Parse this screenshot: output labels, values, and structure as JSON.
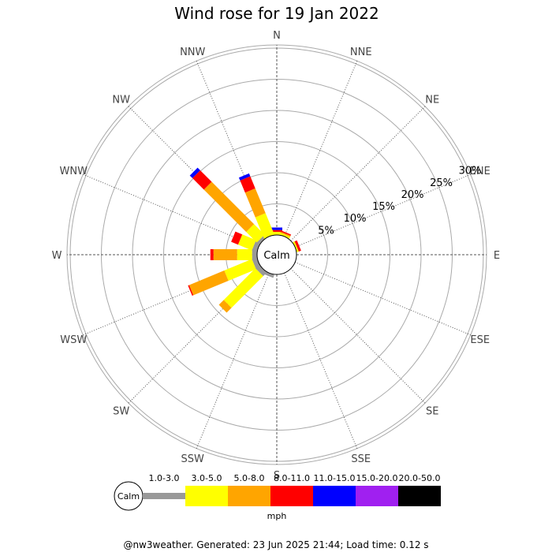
{
  "title": "Wind rose for 19 Jan 2022",
  "calm_label": "Calm",
  "footer": "@nw3weather. Generated: 23 Jun 2025 21:44; Load time: 0.12 s",
  "legend": {
    "unit": "mph",
    "calm_label": "Calm",
    "bins": [
      {
        "label": "1.0-3.0",
        "color": "#999999"
      },
      {
        "label": "3.0-5.0",
        "color": "#ffff00"
      },
      {
        "label": "5.0-8.0",
        "color": "#ffa500"
      },
      {
        "label": "8.0-11.0",
        "color": "#ff0000"
      },
      {
        "label": "11.0-15.0",
        "color": "#0000ff"
      },
      {
        "label": "15.0-20.0",
        "color": "#a020f0"
      },
      {
        "label": "20.0-50.0",
        "color": "#000000"
      }
    ]
  },
  "chart_data": {
    "type": "windrose",
    "title": "Wind rose for 19 Jan 2022",
    "directions": [
      "N",
      "NNE",
      "NE",
      "ENE",
      "E",
      "ESE",
      "SE",
      "SSE",
      "S",
      "SSW",
      "SW",
      "WSW",
      "W",
      "WNW",
      "NW",
      "NNW"
    ],
    "radial_ticks": [
      "5%",
      "10%",
      "15%",
      "20%",
      "25%",
      "30%"
    ],
    "radial_values": [
      5,
      10,
      15,
      20,
      25,
      30
    ],
    "rmax": 30,
    "speed_bins": [
      "1.0-3.0",
      "3.0-5.0",
      "5.0-8.0",
      "8.0-11.0",
      "11.0-15.0",
      "15.0-20.0",
      "20.0-50.0"
    ],
    "unit": "mph",
    "series": [
      {
        "direction": "N",
        "values": [
          0,
          0.5,
          0,
          0.3,
          0.4,
          0,
          0
        ]
      },
      {
        "direction": "NNE",
        "values": [
          0,
          0.3,
          0.2,
          0.2,
          0,
          0,
          0
        ]
      },
      {
        "direction": "ENE",
        "values": [
          0,
          0.3,
          0,
          0.4,
          0,
          0,
          0
        ]
      },
      {
        "direction": "SSW",
        "values": [
          0.5,
          0,
          0,
          0,
          0,
          0,
          0
        ]
      },
      {
        "direction": "SW",
        "values": [
          0.8,
          7.2,
          1.1,
          0,
          0,
          0,
          0
        ]
      },
      {
        "direction": "WSW",
        "values": [
          0.8,
          4.8,
          6.1,
          0.2,
          0,
          0,
          0
        ]
      },
      {
        "direction": "W",
        "values": [
          0.8,
          2.4,
          3.8,
          0.5,
          0,
          0,
          0
        ]
      },
      {
        "direction": "WNW",
        "values": [
          0.8,
          2.4,
          0,
          1.2,
          0,
          0,
          0
        ]
      },
      {
        "direction": "NW",
        "values": [
          0.5,
          2.4,
          9.6,
          2.6,
          0.6,
          0,
          0
        ]
      },
      {
        "direction": "NNW",
        "values": [
          0,
          3.7,
          4.3,
          2.1,
          0.5,
          0,
          0
        ]
      }
    ]
  }
}
